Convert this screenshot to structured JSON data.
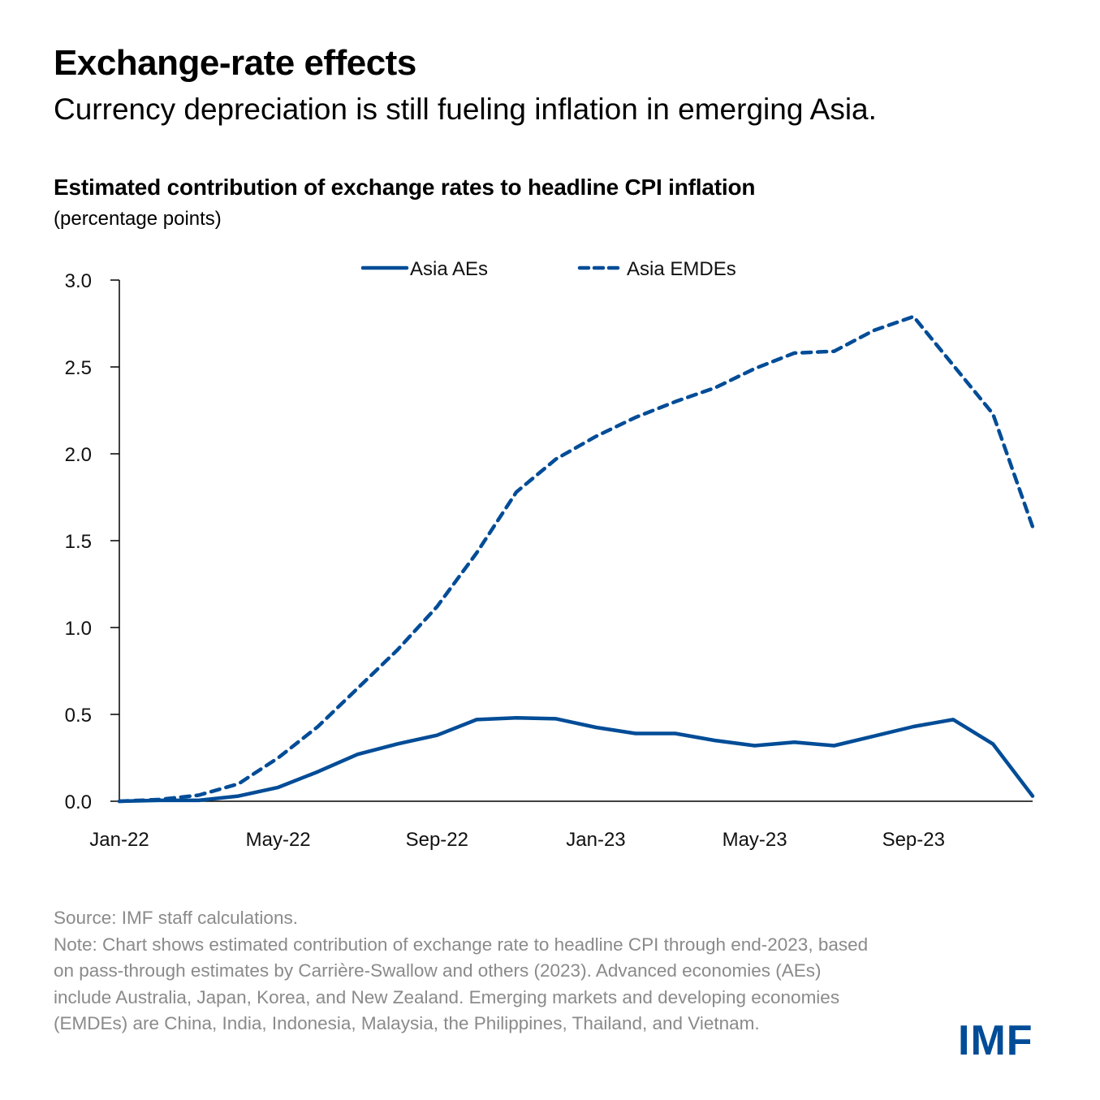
{
  "header": {
    "title": "Exchange-rate effects",
    "subtitle": "Currency depreciation is still fueling inflation in emerging Asia."
  },
  "chart_data": {
    "type": "line",
    "title": "Estimated contribution of exchange rates to headline CPI inflation",
    "unit": "(percentage points)",
    "xlabel": "",
    "ylabel": "",
    "ylim": [
      0,
      3.0
    ],
    "yticks": [
      "0.0",
      "0.5",
      "1.0",
      "1.5",
      "2.0",
      "2.5",
      "3.0"
    ],
    "ytick_values": [
      0,
      0.5,
      1.0,
      1.5,
      2.0,
      2.5,
      3.0
    ],
    "grid": false,
    "legend_position": "top-center",
    "x": [
      "Jan-22",
      "Feb-22",
      "Mar-22",
      "Apr-22",
      "May-22",
      "Jun-22",
      "Jul-22",
      "Aug-22",
      "Sep-22",
      "Oct-22",
      "Nov-22",
      "Dec-22",
      "Jan-23",
      "Feb-23",
      "Mar-23",
      "Apr-23",
      "May-23",
      "Jun-23",
      "Jul-23",
      "Aug-23",
      "Sep-23",
      "Oct-23",
      "Nov-23",
      "Dec-23"
    ],
    "xtick_labels": [
      "Jan-22",
      "May-22",
      "Sep-22",
      "Jan-23",
      "May-23",
      "Sep-23"
    ],
    "xtick_indices": [
      0,
      4,
      8,
      12,
      16,
      20
    ],
    "series": [
      {
        "name": "Asia AEs",
        "style": "solid",
        "color": "#004c97",
        "values": [
          0.0,
          0.005,
          0.005,
          0.03,
          0.08,
          0.17,
          0.27,
          0.33,
          0.38,
          0.47,
          0.48,
          0.475,
          0.425,
          0.39,
          0.39,
          0.35,
          0.32,
          0.34,
          0.32,
          0.375,
          0.43,
          0.47,
          0.33,
          0.03
        ]
      },
      {
        "name": "Asia EMDEs",
        "style": "dashed",
        "color": "#004c97",
        "values": [
          0.0,
          0.01,
          0.035,
          0.1,
          0.25,
          0.43,
          0.65,
          0.87,
          1.12,
          1.43,
          1.78,
          1.97,
          2.1,
          2.21,
          2.3,
          2.38,
          2.49,
          2.58,
          2.59,
          2.71,
          2.79,
          2.51,
          2.23,
          1.58
        ]
      }
    ]
  },
  "footer": {
    "source": "Source: IMF staff calculations.",
    "note": "Note: Chart shows estimated contribution of exchange rate to headline CPI through end-2023, based on pass-through estimates by Carrière-Swallow and others (2023). Advanced economies (AEs) include Australia, Japan, Korea, and New Zealand. Emerging markets and developing economies (EMDEs) are China, India, Indonesia, Malaysia, the Philippines, Thailand, and Vietnam.",
    "logo_text": "IMF"
  },
  "colors": {
    "series": "#004c97",
    "axis": "#000000",
    "footnote": "#8a8a8a",
    "brand": "#004c97"
  }
}
